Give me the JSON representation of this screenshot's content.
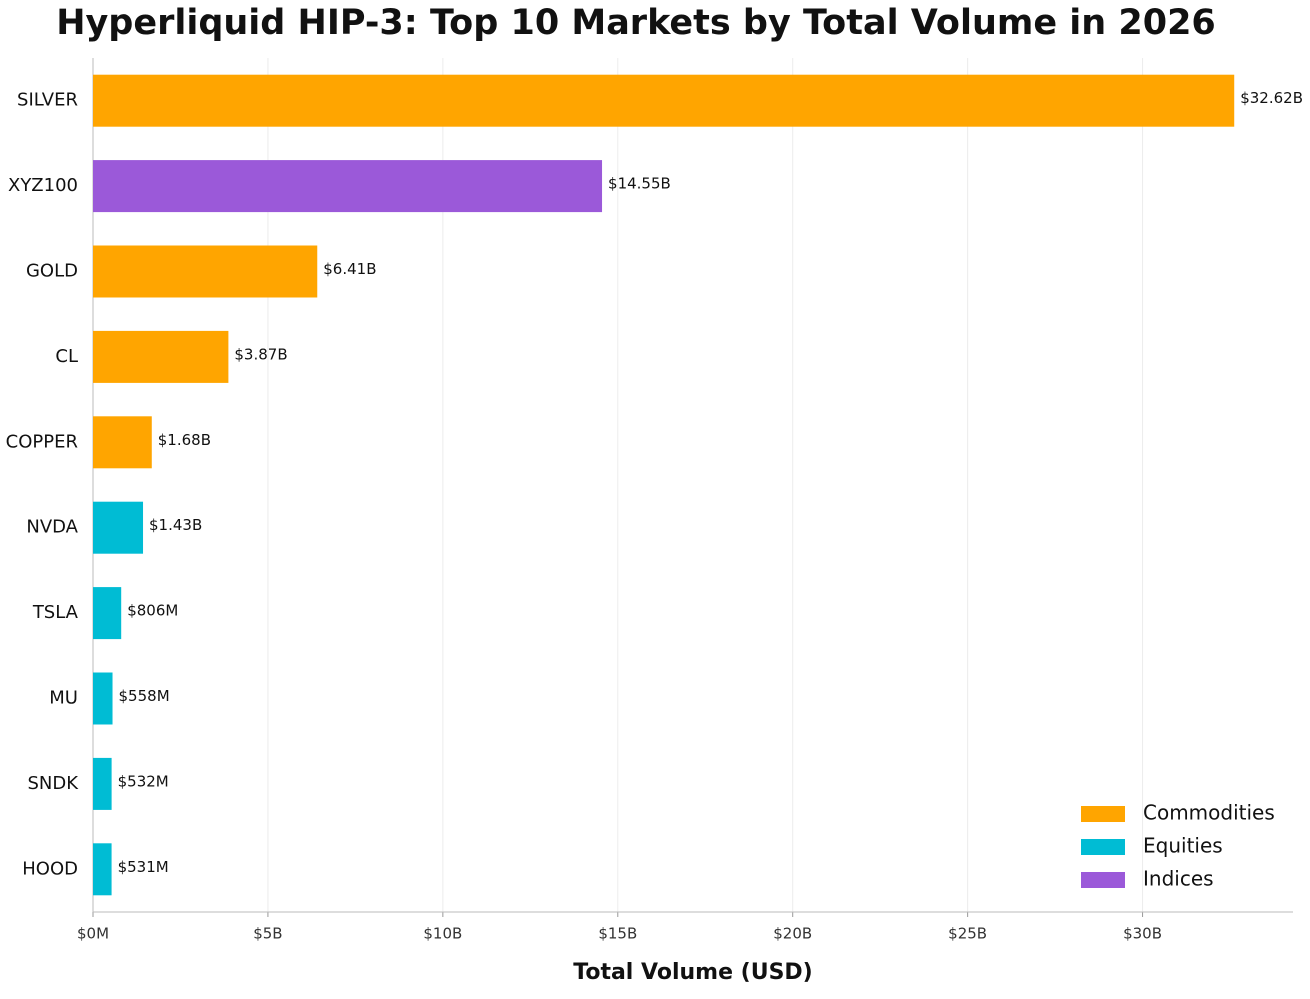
{
  "chart_data": {
    "type": "bar",
    "orientation": "horizontal",
    "title": "Hyperliquid HIP-3: Top 10 Markets by Total Volume in 2026",
    "x_label": "Total Volume (USD)",
    "categories": [
      "SILVER",
      "XYZ100",
      "GOLD",
      "CL",
      "COPPER",
      "NVDA",
      "TSLA",
      "MU",
      "SNDK",
      "HOOD"
    ],
    "series": [
      {
        "name": "Commodities",
        "color": "#ffa500",
        "values": [
          32620000000,
          null,
          6410000000,
          3870000000,
          1680000000,
          null,
          null,
          null,
          null,
          null
        ],
        "value_labels": [
          "$32.62B",
          null,
          "$6.41B",
          "$3.87B",
          "$1.68B",
          null,
          null,
          null,
          null,
          null
        ]
      },
      {
        "name": "Equities",
        "color": "#00bcd4",
        "values": [
          null,
          null,
          null,
          null,
          null,
          1430000000,
          806000000,
          558000000,
          532000000,
          531000000
        ],
        "value_labels": [
          null,
          null,
          null,
          null,
          null,
          "$1.43B",
          "$806M",
          "$558M",
          "$532M",
          "$531M"
        ]
      },
      {
        "name": "Indices",
        "color": "#9b59d9",
        "values": [
          null,
          14550000000,
          null,
          null,
          null,
          null,
          null,
          null,
          null,
          null
        ],
        "value_labels": [
          null,
          "$14.55B",
          null,
          null,
          null,
          null,
          null,
          null,
          null,
          null
        ]
      }
    ],
    "xlim": [
      0,
      34300000000
    ],
    "xticks": [
      {
        "value": 0,
        "label": "$0M"
      },
      {
        "value": 5000000000,
        "label": "$5B"
      },
      {
        "value": 10000000000,
        "label": "$10B"
      },
      {
        "value": 15000000000,
        "label": "$15B"
      },
      {
        "value": 20000000000,
        "label": "$20B"
      },
      {
        "value": 25000000000,
        "label": "$25B"
      },
      {
        "value": 30000000000,
        "label": "$30B"
      }
    ],
    "grid": true,
    "legend_position": "lower right"
  }
}
